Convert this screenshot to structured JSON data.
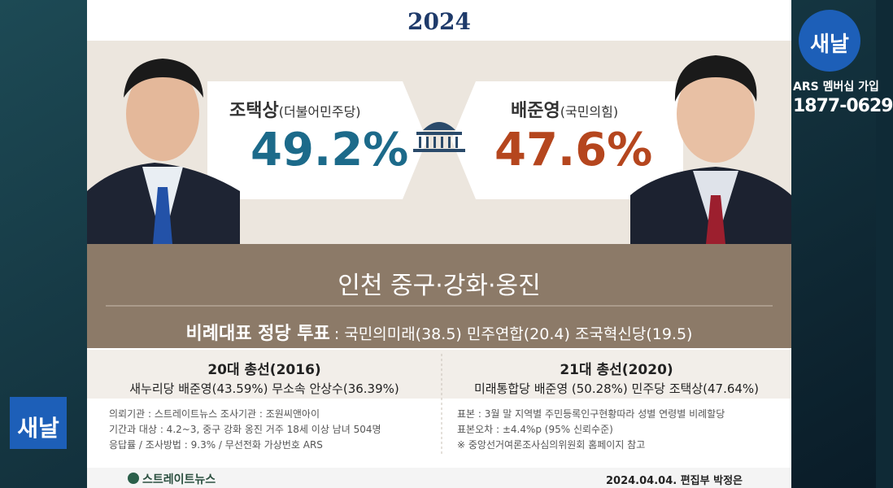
{
  "header": {
    "year": "2024"
  },
  "candidates": [
    {
      "name": "조택상",
      "party": "(더불어민주당)",
      "share": "49.2%"
    },
    {
      "name": "배준영",
      "party": "(국민의힘)",
      "share": "47.6%"
    }
  ],
  "region": "인천 중구·강화·옹진",
  "party_vote": {
    "label": "비례대표 정당 투표",
    "detail": ": 국민의미래(38.5) 민주연합(20.4) 조국혁신당(19.5)"
  },
  "past": [
    {
      "title": "20대 총선(2016)",
      "result": "새누리당 배준영(43.59%) 무소속 안상수(36.39%)"
    },
    {
      "title": "21대 총선(2020)",
      "result": "미래통합당 배준영 (50.28%) 민주당 조택상(47.64%)"
    }
  ],
  "notes_left": [
    "의뢰기관 : 스트레이트뉴스  조사기관 : 조원씨앤아이",
    "기간과 대상 : 4.2~3,  중구 강화 옹진 거주 18세 이상 남녀 504명",
    "응답률 / 조사방법 : 9.3% / 무선전화 가상번호 ARS"
  ],
  "notes_right": [
    "표본 : 3월 말 지역별 주민등록인구현황따라 성별 연령별 비례할당",
    "표본오차 : ±4.4%p (95% 신뢰수준)",
    "※ 중앙선거여론조사심의위원회 홈페이지 참고"
  ],
  "footer": {
    "brand": "스트레이트뉴스",
    "byline": "2024.04.04. 편집부 박정은"
  },
  "channel": {
    "logo": "새날",
    "membership": "ARS 멤버십 가입",
    "phone": "1877-0629",
    "side_logo": "새날"
  }
}
